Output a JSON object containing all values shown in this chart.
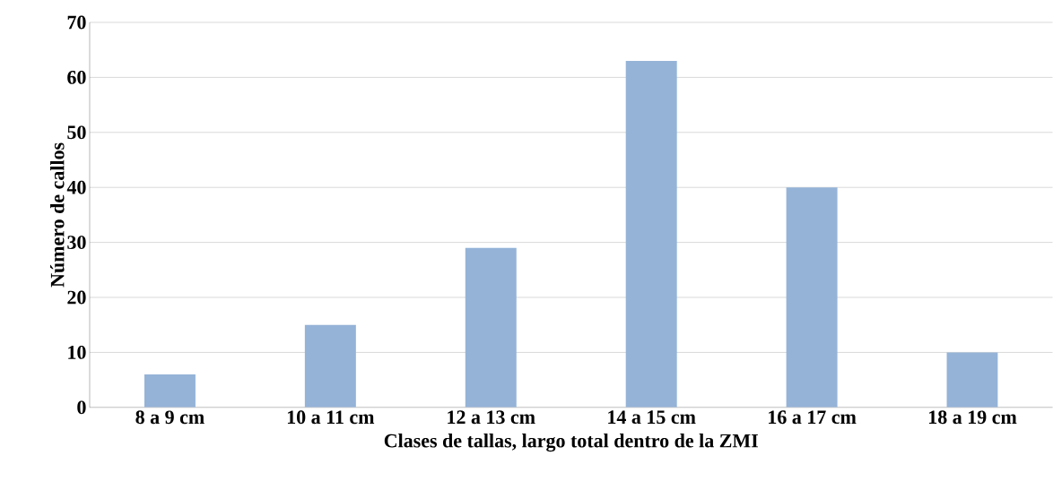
{
  "chart_data": {
    "type": "bar",
    "xlabel": "Clases de tallas, largo total dentro de la ZMI",
    "ylabel": "Número de callos",
    "categories": [
      "8 a 9 cm",
      "10 a 11 cm",
      "12 a 13 cm",
      "14 a 15 cm",
      "16 a 17 cm",
      "18 a 19 cm"
    ],
    "values": [
      6,
      15,
      29,
      63,
      40,
      10
    ],
    "color": "#95b3d7",
    "ylim": [
      0,
      70
    ],
    "yticks": [
      0,
      10,
      20,
      30,
      40,
      50,
      60,
      70
    ],
    "grid": "y"
  }
}
